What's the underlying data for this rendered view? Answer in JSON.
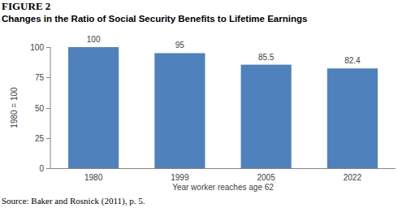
{
  "chart_data": {
    "type": "bar",
    "title": "FIGURE 2",
    "subtitle": "Changes in the Ratio of Social Security Benefits to Lifetime Earnings",
    "categories": [
      "1980",
      "1999",
      "2005",
      "2022"
    ],
    "values": [
      100,
      95,
      85.5,
      82.4
    ],
    "color": "#4f81bd",
    "ylim": [
      0,
      100
    ],
    "yticks": [
      0,
      25,
      50,
      75,
      100
    ],
    "y_label": "1980 = 100",
    "x_label": "Year worker reaches age 62",
    "source": "Source: Baker and Rosnick (2011), p. 5.",
    "data_labels": true,
    "grid": false
  }
}
